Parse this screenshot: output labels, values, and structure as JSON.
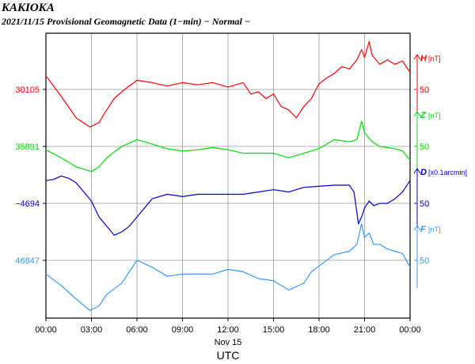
{
  "header": {
    "station": "KAKIOKA",
    "subtitle": "2021/11/15  Provisional Geomagnetic Data (1−min)  − Normal −"
  },
  "chart_data": {
    "type": "line",
    "xlabel": "UTC",
    "date_label": "Nov 15",
    "x_ticks": [
      "00:00",
      "03:00",
      "06:00",
      "09:00",
      "12:00",
      "15:00",
      "18:00",
      "21:00",
      "00:00"
    ],
    "x_range_hours": [
      0,
      24
    ],
    "scale_labels": [
      "50",
      "50",
      "50",
      "50"
    ],
    "scale_step": 50,
    "series": [
      {
        "name": "H",
        "unit": "[nT]",
        "color": "#ff0000",
        "base_label": "30105",
        "base_value": 30105,
        "points": [
          [
            0,
            12
          ],
          [
            1,
            -6
          ],
          [
            2,
            -25
          ],
          [
            2.9,
            -33
          ],
          [
            3.5,
            -29
          ],
          [
            4,
            -18
          ],
          [
            4.5,
            -8
          ],
          [
            5,
            -2
          ],
          [
            6,
            8
          ],
          [
            7,
            6
          ],
          [
            8,
            3
          ],
          [
            9,
            6
          ],
          [
            10,
            4
          ],
          [
            11,
            6
          ],
          [
            12,
            2
          ],
          [
            13,
            6
          ],
          [
            13.5,
            -4
          ],
          [
            14,
            -2
          ],
          [
            14.5,
            -8
          ],
          [
            15,
            -4
          ],
          [
            15.5,
            -15
          ],
          [
            16,
            -18
          ],
          [
            16.5,
            -25
          ],
          [
            17,
            -15
          ],
          [
            17.5,
            -8
          ],
          [
            18,
            5
          ],
          [
            18.5,
            10
          ],
          [
            19,
            14
          ],
          [
            19.5,
            20
          ],
          [
            20,
            18
          ],
          [
            20.5,
            26
          ],
          [
            20.8,
            35
          ],
          [
            21.0,
            28
          ],
          [
            21.3,
            42
          ],
          [
            21.5,
            30
          ],
          [
            22,
            22
          ],
          [
            22.5,
            26
          ],
          [
            23,
            22
          ],
          [
            23.5,
            25
          ],
          [
            24,
            15
          ]
        ]
      },
      {
        "name": "Z",
        "unit": "[nT]",
        "color": "#00dd00",
        "base_label": "35891",
        "base_value": 35891,
        "points": [
          [
            0,
            -3
          ],
          [
            1,
            -10
          ],
          [
            2,
            -18
          ],
          [
            3,
            -22
          ],
          [
            3.5,
            -18
          ],
          [
            4,
            -10
          ],
          [
            5,
            0
          ],
          [
            6,
            6
          ],
          [
            7,
            2
          ],
          [
            8,
            -2
          ],
          [
            9,
            -4
          ],
          [
            10,
            -3
          ],
          [
            11,
            -1
          ],
          [
            12,
            -3
          ],
          [
            13,
            -6
          ],
          [
            14,
            -6
          ],
          [
            15,
            -6
          ],
          [
            16,
            -10
          ],
          [
            17,
            -6
          ],
          [
            18,
            -2
          ],
          [
            19,
            6
          ],
          [
            20,
            4
          ],
          [
            20.5,
            6
          ],
          [
            20.8,
            22
          ],
          [
            21,
            12
          ],
          [
            21.5,
            4
          ],
          [
            22,
            0
          ],
          [
            23,
            -2
          ],
          [
            23.5,
            -4
          ],
          [
            24,
            -12
          ]
        ]
      },
      {
        "name": "D",
        "unit": "[x0.1arcmin]",
        "color": "#0000cc",
        "base_label": "−4694",
        "base_value": -4694,
        "points": [
          [
            0,
            20
          ],
          [
            0.5,
            21
          ],
          [
            1,
            24
          ],
          [
            1.5,
            22
          ],
          [
            2,
            18
          ],
          [
            2.5,
            10
          ],
          [
            3,
            2
          ],
          [
            3.5,
            -12
          ],
          [
            4,
            -20
          ],
          [
            4.5,
            -28
          ],
          [
            5,
            -25
          ],
          [
            5.5,
            -20
          ],
          [
            6,
            -12
          ],
          [
            6.5,
            -4
          ],
          [
            7,
            4
          ],
          [
            8,
            8
          ],
          [
            9,
            6
          ],
          [
            10,
            8
          ],
          [
            11,
            8
          ],
          [
            12,
            8
          ],
          [
            13,
            8
          ],
          [
            14,
            10
          ],
          [
            15,
            12
          ],
          [
            16,
            10
          ],
          [
            17,
            14
          ],
          [
            18,
            15
          ],
          [
            19,
            16
          ],
          [
            20,
            16
          ],
          [
            20.3,
            10
          ],
          [
            20.6,
            -18
          ],
          [
            20.8,
            -12
          ],
          [
            21.0,
            -4
          ],
          [
            21.3,
            2
          ],
          [
            21.6,
            -2
          ],
          [
            22,
            0
          ],
          [
            22.5,
            0
          ],
          [
            23,
            4
          ],
          [
            23.5,
            10
          ],
          [
            24,
            20
          ]
        ]
      },
      {
        "name": "F",
        "unit": "[nT]",
        "color": "#3399ff",
        "base_label": "46847",
        "base_value": 46847,
        "points": [
          [
            0,
            -12
          ],
          [
            1,
            -22
          ],
          [
            2,
            -34
          ],
          [
            2.9,
            -44
          ],
          [
            3.5,
            -40
          ],
          [
            4,
            -30
          ],
          [
            5,
            -20
          ],
          [
            6,
            0
          ],
          [
            7,
            -6
          ],
          [
            8,
            -14
          ],
          [
            9,
            -12
          ],
          [
            10,
            -12
          ],
          [
            11,
            -12
          ],
          [
            12,
            -8
          ],
          [
            13,
            -10
          ],
          [
            14,
            -16
          ],
          [
            15,
            -18
          ],
          [
            16,
            -26
          ],
          [
            17,
            -20
          ],
          [
            17.5,
            -10
          ],
          [
            18,
            -5
          ],
          [
            19,
            5
          ],
          [
            20,
            8
          ],
          [
            20.5,
            14
          ],
          [
            20.8,
            32
          ],
          [
            21.0,
            20
          ],
          [
            21.3,
            24
          ],
          [
            21.6,
            14
          ],
          [
            22,
            14
          ],
          [
            22.5,
            10
          ],
          [
            23,
            8
          ],
          [
            23.5,
            6
          ],
          [
            24,
            -6
          ]
        ]
      }
    ]
  }
}
